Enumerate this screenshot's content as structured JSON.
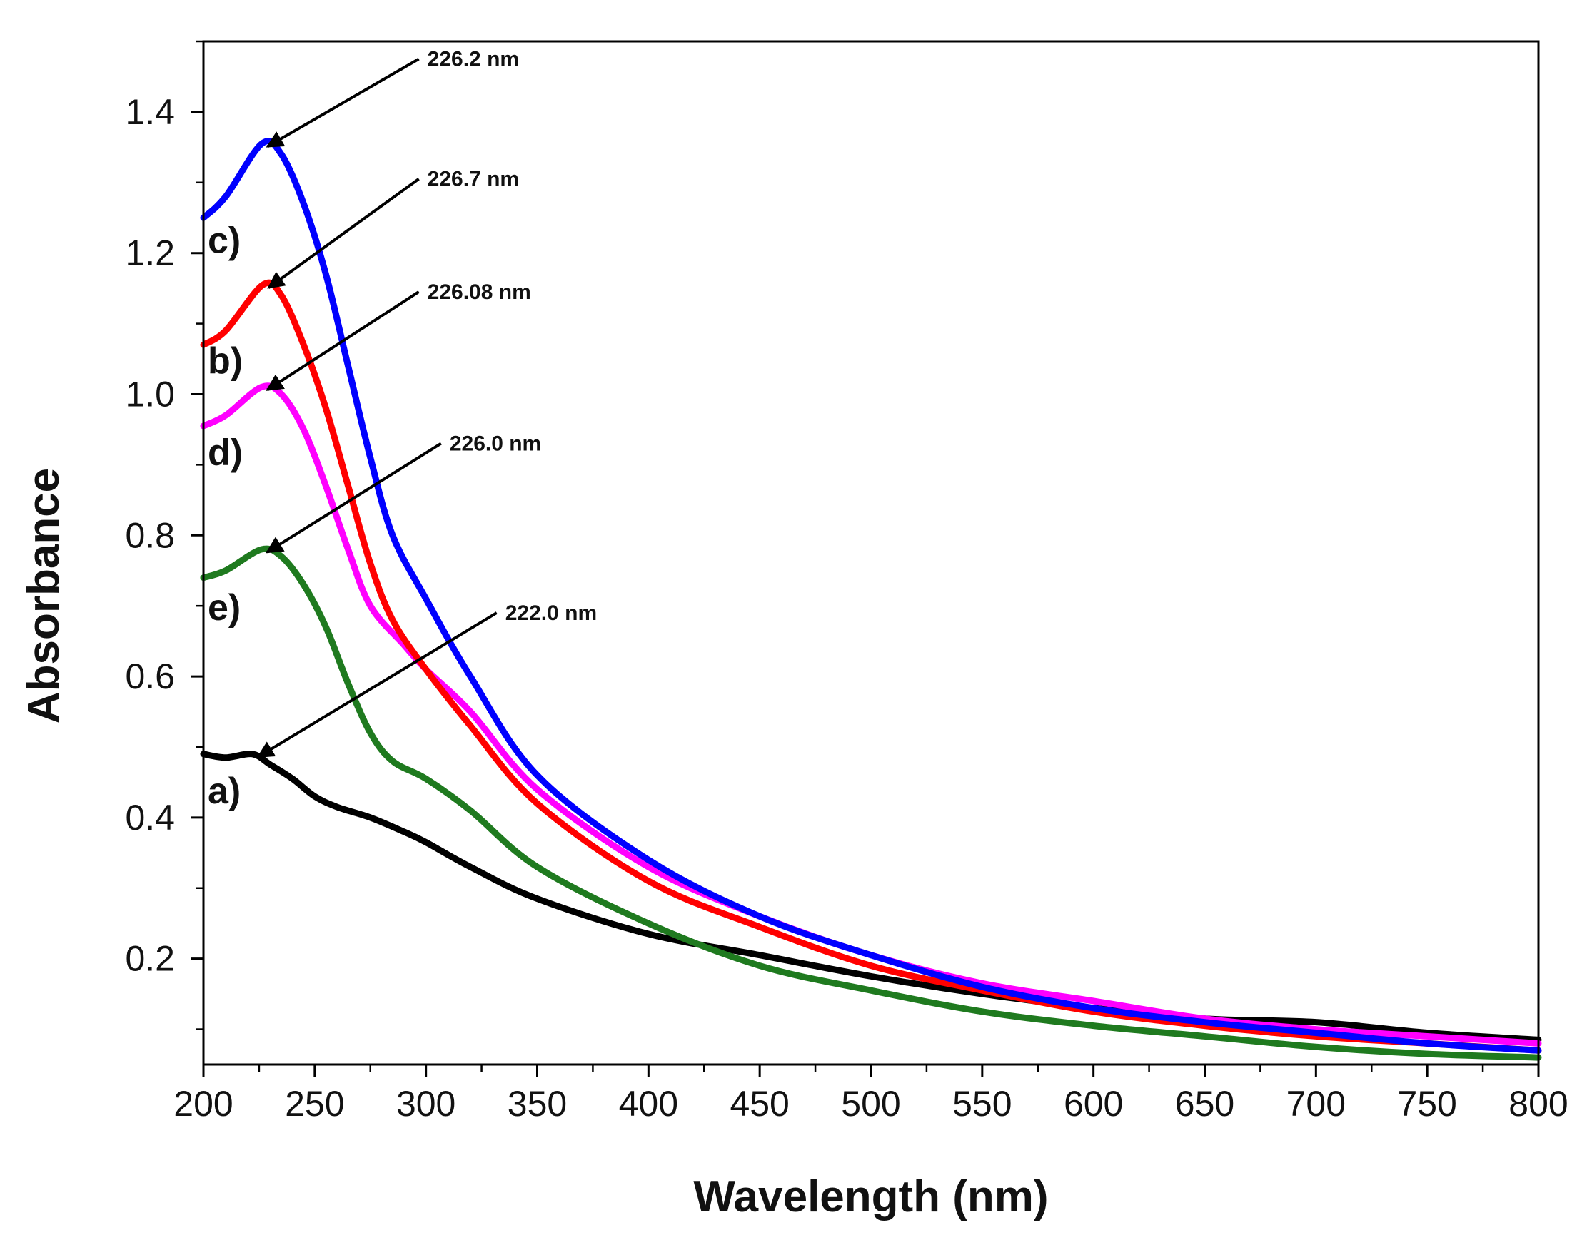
{
  "chart_data": {
    "type": "line",
    "title": "",
    "xlabel": "Wavelength (nm)",
    "ylabel": "Absorbance",
    "xlim": [
      200,
      800
    ],
    "ylim": [
      0.05,
      1.5
    ],
    "xticks": [
      200,
      250,
      300,
      350,
      400,
      450,
      500,
      550,
      600,
      650,
      700,
      750,
      800
    ],
    "yticks": [
      0.2,
      0.4,
      0.6,
      0.8,
      1.0,
      1.2,
      1.4
    ],
    "ytick_labels": [
      "0.2",
      "0.4",
      "0.6",
      "0.8",
      "1.0",
      "1.2",
      "1.4"
    ],
    "grid": false,
    "legend": "none",
    "series": [
      {
        "name": "a)",
        "color": "#000000",
        "x": [
          200,
          210,
          222,
          230,
          240,
          250,
          260,
          275,
          290,
          300,
          320,
          350,
          400,
          450,
          500,
          550,
          600,
          650,
          700,
          750,
          800
        ],
        "y": [
          0.49,
          0.485,
          0.49,
          0.475,
          0.455,
          0.43,
          0.415,
          0.4,
          0.38,
          0.365,
          0.33,
          0.285,
          0.235,
          0.205,
          0.175,
          0.15,
          0.13,
          0.115,
          0.11,
          0.095,
          0.085
        ]
      },
      {
        "name": "e)",
        "color": "#1f7a1f",
        "x": [
          200,
          210,
          226,
          235,
          245,
          255,
          265,
          275,
          285,
          300,
          320,
          350,
          400,
          450,
          500,
          550,
          600,
          650,
          700,
          750,
          800
        ],
        "y": [
          0.74,
          0.75,
          0.78,
          0.77,
          0.73,
          0.67,
          0.59,
          0.52,
          0.48,
          0.455,
          0.41,
          0.33,
          0.25,
          0.19,
          0.155,
          0.125,
          0.105,
          0.09,
          0.075,
          0.065,
          0.06
        ]
      },
      {
        "name": "d)",
        "color": "#ff00ff",
        "x": [
          200,
          210,
          226,
          235,
          245,
          255,
          265,
          275,
          290,
          300,
          320,
          350,
          400,
          450,
          500,
          550,
          600,
          650,
          700,
          750,
          800
        ],
        "y": [
          0.955,
          0.97,
          1.01,
          1.0,
          0.95,
          0.87,
          0.78,
          0.7,
          0.645,
          0.61,
          0.55,
          0.44,
          0.33,
          0.26,
          0.205,
          0.165,
          0.14,
          0.115,
          0.1,
          0.09,
          0.08
        ]
      },
      {
        "name": "b)",
        "color": "#ff0000",
        "x": [
          200,
          210,
          226.7,
          235,
          245,
          255,
          265,
          275,
          285,
          300,
          320,
          350,
          400,
          450,
          500,
          550,
          600,
          650,
          700,
          750,
          800
        ],
        "y": [
          1.07,
          1.09,
          1.155,
          1.14,
          1.07,
          0.98,
          0.87,
          0.76,
          0.68,
          0.61,
          0.53,
          0.42,
          0.31,
          0.245,
          0.19,
          0.155,
          0.125,
          0.105,
          0.09,
          0.08,
          0.07
        ]
      },
      {
        "name": "c)",
        "color": "#0000ff",
        "x": [
          200,
          210,
          226.2,
          235,
          245,
          255,
          265,
          275,
          285,
          300,
          320,
          350,
          400,
          450,
          500,
          550,
          600,
          650,
          700,
          750,
          800
        ],
        "y": [
          1.25,
          1.28,
          1.355,
          1.34,
          1.27,
          1.17,
          1.04,
          0.91,
          0.8,
          0.71,
          0.6,
          0.46,
          0.34,
          0.26,
          0.205,
          0.16,
          0.13,
          0.11,
          0.095,
          0.08,
          0.07
        ]
      }
    ],
    "series_labels": [
      {
        "text": "c)",
        "x": 200,
        "y": 1.2
      },
      {
        "text": "b)",
        "x": 200,
        "y": 1.03
      },
      {
        "text": "d)",
        "x": 200,
        "y": 0.9
      },
      {
        "text": "e)",
        "x": 200,
        "y": 0.68
      },
      {
        "text": "a)",
        "x": 200,
        "y": 0.42
      }
    ],
    "annotations": [
      {
        "text": "226.2 nm",
        "peak_x": 226.2,
        "peak_y": 1.355,
        "text_x": 300,
        "text_y": 1.465
      },
      {
        "text": "226.7 nm",
        "peak_x": 226.7,
        "peak_y": 1.155,
        "text_x": 300,
        "text_y": 1.295
      },
      {
        "text": "226.08 nm",
        "peak_x": 226.08,
        "peak_y": 1.01,
        "text_x": 300,
        "text_y": 1.135
      },
      {
        "text": "226.0 nm",
        "peak_x": 226.0,
        "peak_y": 0.78,
        "text_x": 310,
        "text_y": 0.92
      },
      {
        "text": "222.0 nm",
        "peak_x": 222.0,
        "peak_y": 0.49,
        "text_x": 335,
        "text_y": 0.68
      }
    ]
  }
}
